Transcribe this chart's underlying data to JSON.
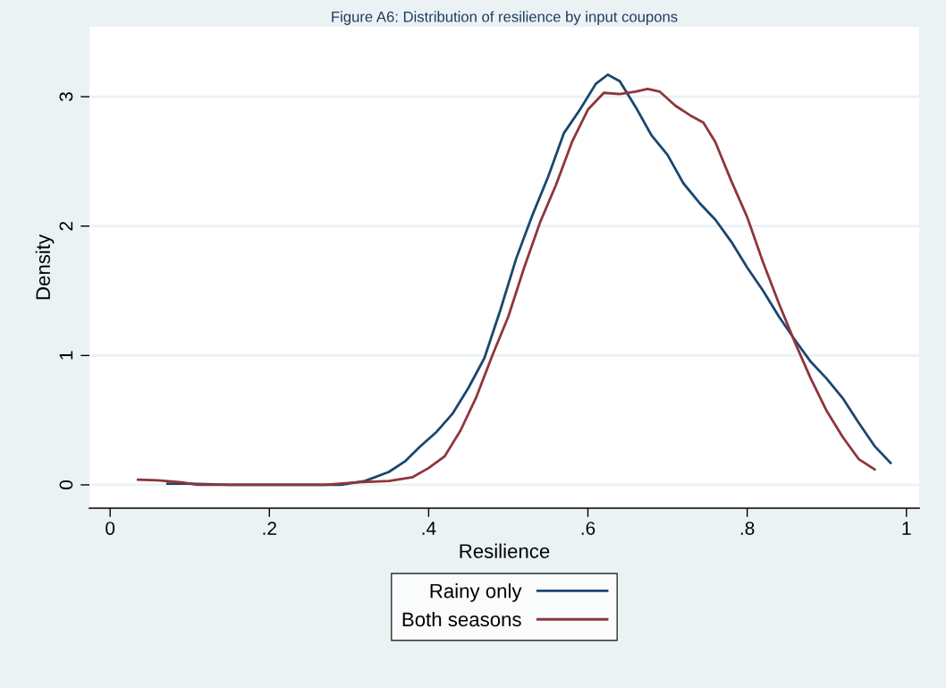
{
  "chart_data": {
    "type": "line",
    "title": "Figure A6: Distribution of resilience by input coupons",
    "xlabel": "Resilience",
    "ylabel": "Density",
    "xlim": [
      -0.026,
      1.016
    ],
    "xticks": [
      {
        "value": 0,
        "label": "0"
      },
      {
        "value": 0.2,
        "label": ".2"
      },
      {
        "value": 0.4,
        "label": ".4"
      },
      {
        "value": 0.6,
        "label": ".6"
      },
      {
        "value": 0.8,
        "label": ".8"
      },
      {
        "value": 1,
        "label": "1"
      }
    ],
    "ylim": [
      -0.18,
      3.54
    ],
    "yticks": [
      0,
      1,
      2,
      3
    ],
    "grid": "y",
    "legend": "bottom",
    "marker": "none",
    "line_style": "solid",
    "series": [
      {
        "name": "Rainy only",
        "color": "#1a476f",
        "x": [
          0.072,
          0.1,
          0.15,
          0.2,
          0.25,
          0.29,
          0.32,
          0.35,
          0.37,
          0.39,
          0.41,
          0.43,
          0.45,
          0.47,
          0.49,
          0.51,
          0.53,
          0.55,
          0.57,
          0.59,
          0.61,
          0.625,
          0.64,
          0.66,
          0.68,
          0.7,
          0.72,
          0.74,
          0.76,
          0.78,
          0.8,
          0.82,
          0.84,
          0.86,
          0.88,
          0.9,
          0.92,
          0.94,
          0.96,
          0.98
        ],
        "values": [
          0.01,
          0.01,
          0,
          0,
          0,
          0,
          0.03,
          0.1,
          0.18,
          0.3,
          0.41,
          0.55,
          0.75,
          0.98,
          1.35,
          1.75,
          2.08,
          2.38,
          2.72,
          2.9,
          3.1,
          3.17,
          3.12,
          2.92,
          2.7,
          2.55,
          2.33,
          2.18,
          2.05,
          1.88,
          1.68,
          1.5,
          1.3,
          1.12,
          0.95,
          0.82,
          0.67,
          0.48,
          0.3,
          0.17
        ]
      },
      {
        "name": "Both seasons",
        "color": "#90353b",
        "x": [
          0.035,
          0.06,
          0.09,
          0.11,
          0.15,
          0.2,
          0.27,
          0.31,
          0.35,
          0.38,
          0.4,
          0.42,
          0.44,
          0.46,
          0.48,
          0.5,
          0.52,
          0.54,
          0.56,
          0.58,
          0.6,
          0.62,
          0.64,
          0.66,
          0.675,
          0.69,
          0.71,
          0.73,
          0.745,
          0.76,
          0.78,
          0.8,
          0.82,
          0.84,
          0.86,
          0.88,
          0.9,
          0.92,
          0.94,
          0.96
        ],
        "values": [
          0.04,
          0.035,
          0.02,
          0,
          0,
          0,
          0,
          0.02,
          0.03,
          0.06,
          0.13,
          0.22,
          0.42,
          0.68,
          1.0,
          1.3,
          1.68,
          2.03,
          2.32,
          2.65,
          2.9,
          3.03,
          3.02,
          3.04,
          3.06,
          3.04,
          2.93,
          2.85,
          2.8,
          2.65,
          2.35,
          2.07,
          1.72,
          1.4,
          1.1,
          0.82,
          0.57,
          0.37,
          0.2,
          0.12
        ]
      }
    ]
  }
}
